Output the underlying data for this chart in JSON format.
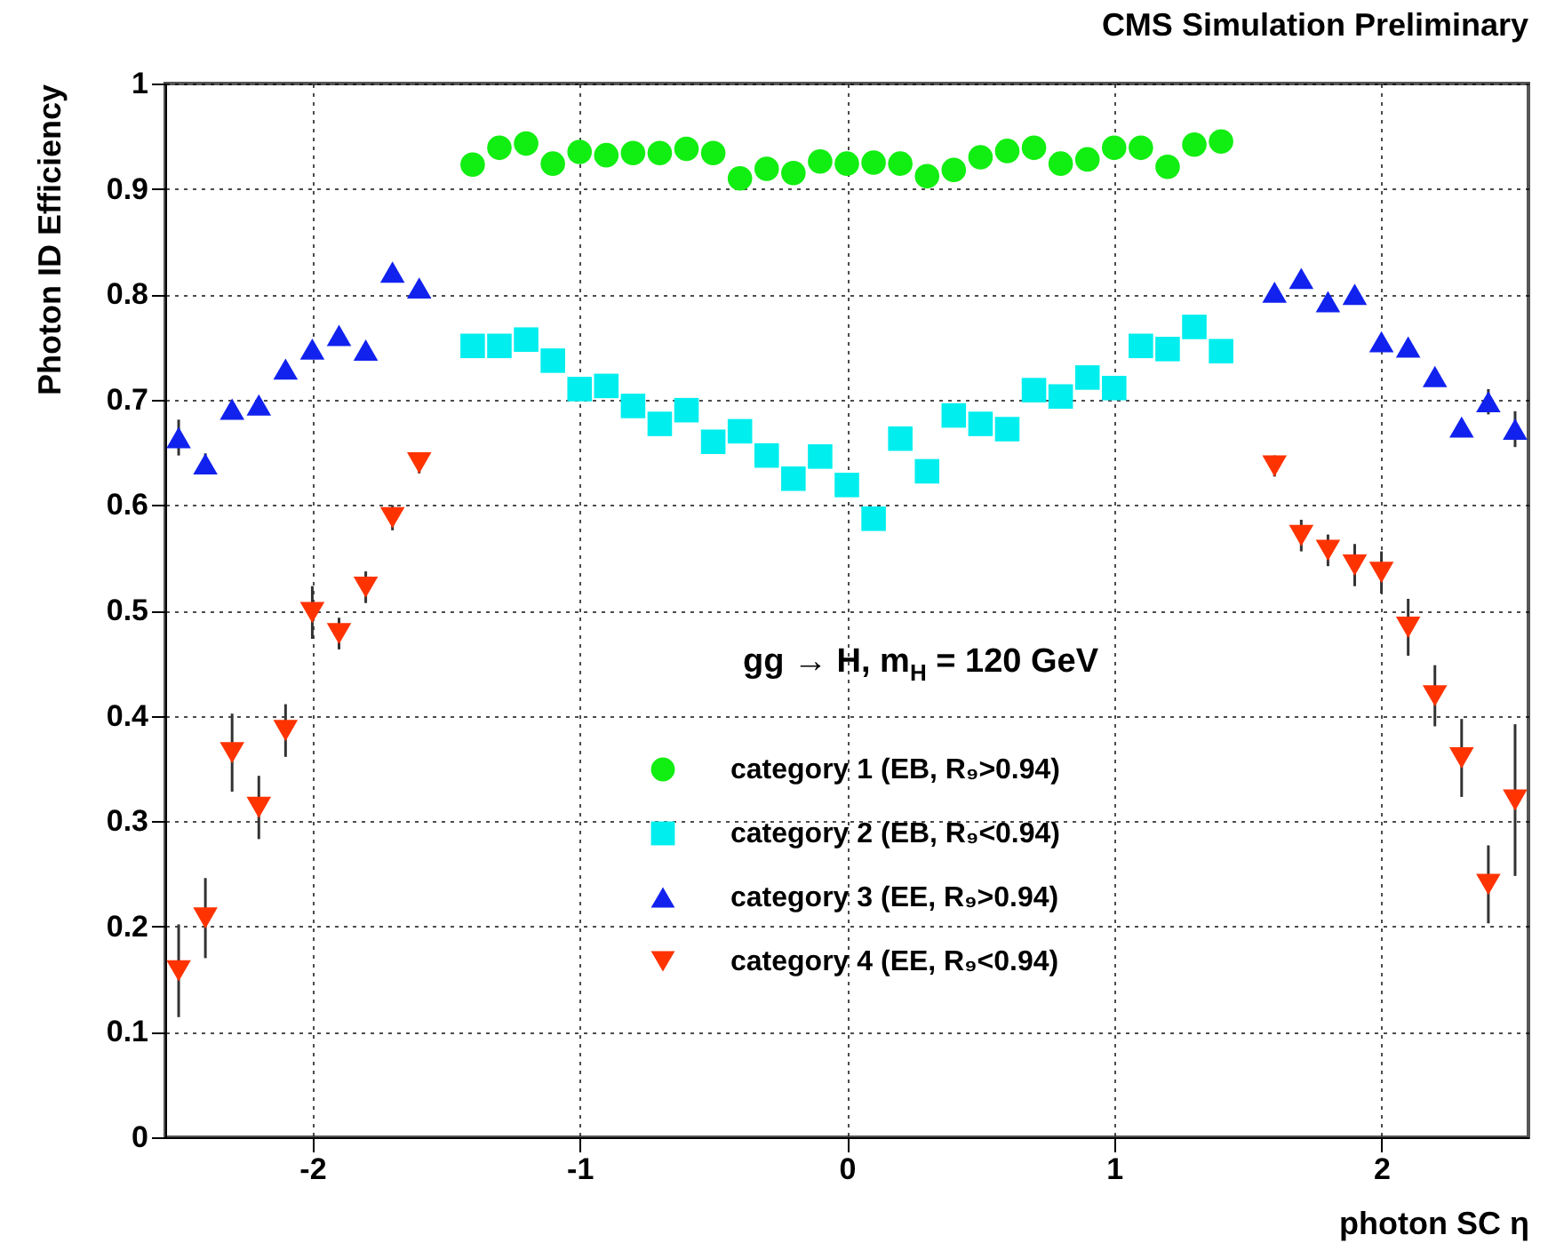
{
  "chart_data": {
    "type": "scatter",
    "title": "CMS Simulation Preliminary",
    "xlabel": "photon SC η",
    "ylabel": "Photon ID Efficiency",
    "annotations": [
      "gg → H, m$_{H}$ = 120 GeV"
    ],
    "xlim": [
      -2.55,
      2.55
    ],
    "xticks": [
      -2,
      -1,
      0,
      1,
      2
    ],
    "ylim": [
      0,
      1
    ],
    "yticks": [
      0,
      0.1,
      0.2,
      0.3,
      0.4,
      0.5,
      0.6,
      0.7,
      0.8,
      0.9,
      1
    ],
    "grid": true,
    "legend": "bottom",
    "series": [
      {
        "name": "category 1 (EB, R₉>0.94)",
        "color": "#11ee11",
        "marker": "circle",
        "x": [
          -1.4,
          -1.3,
          -1.2,
          -1.1,
          -1.0,
          -0.9,
          -0.8,
          -0.7,
          -0.6,
          -0.5,
          -0.4,
          -0.3,
          -0.2,
          -0.1,
          0,
          0.1,
          0.2,
          0.3,
          0.4,
          0.5,
          0.6,
          0.7,
          0.8,
          0.9,
          1.0,
          1.1,
          1.2,
          1.3,
          1.4
        ],
        "values": [
          0.923,
          0.939,
          0.943,
          0.924,
          0.935,
          0.932,
          0.934,
          0.934,
          0.938,
          0.934,
          0.91,
          0.919,
          0.915,
          0.926,
          0.924,
          0.925,
          0.924,
          0.912,
          0.918,
          0.93,
          0.936,
          0.939,
          0.924,
          0.928,
          0.939,
          0.939,
          0.921,
          0.942,
          0.945
        ]
      },
      {
        "name": "category 2 (EB, R₉<0.94)",
        "color": "#00eeee",
        "marker": "square",
        "x": [
          -1.4,
          -1.3,
          -1.2,
          -1.1,
          -1.0,
          -0.9,
          -0.8,
          -0.7,
          -0.6,
          -0.5,
          -0.4,
          -0.3,
          -0.2,
          -0.1,
          0,
          0.1,
          0.2,
          0.3,
          0.4,
          0.5,
          0.6,
          0.7,
          0.8,
          0.9,
          1.0,
          1.1,
          1.2,
          1.3,
          1.4
        ],
        "values": [
          0.751,
          0.751,
          0.757,
          0.737,
          0.71,
          0.713,
          0.694,
          0.677,
          0.69,
          0.66,
          0.67,
          0.647,
          0.625,
          0.646,
          0.619,
          0.587,
          0.663,
          0.632,
          0.685,
          0.677,
          0.672,
          0.709,
          0.703,
          0.721,
          0.711,
          0.751,
          0.748,
          0.769,
          0.746
        ]
      },
      {
        "name": "category 3 (EE, R₉>0.94)",
        "color": "#1122ee",
        "marker": "triangle",
        "x": [
          -2.5,
          -2.4,
          -2.3,
          -2.2,
          -2.1,
          -2.0,
          -1.9,
          -1.8,
          -1.7,
          -1.6,
          1.6,
          1.7,
          1.8,
          1.9,
          2.0,
          2.1,
          2.2,
          2.3,
          2.4,
          2.5
        ],
        "values": [
          0.664,
          0.639,
          0.691,
          0.695,
          0.729,
          0.748,
          0.761,
          0.747,
          0.821,
          0.806,
          0.802,
          0.815,
          0.793,
          0.8,
          0.755,
          0.75,
          0.722,
          0.674,
          0.698,
          0.672
        ],
        "errors": [
          0.017,
          0.01,
          null,
          null,
          null,
          null,
          null,
          null,
          null,
          null,
          null,
          null,
          null,
          null,
          null,
          null,
          null,
          null,
          0.012,
          0.017
        ]
      },
      {
        "name": "category 4 (EE, R₉<0.94)",
        "color": "#ff3300",
        "marker": "triangle-down",
        "x": [
          -2.5,
          -2.4,
          -2.3,
          -2.2,
          -2.1,
          -2.0,
          -1.9,
          -1.8,
          -1.7,
          -1.6,
          1.6,
          1.7,
          1.8,
          1.9,
          2.0,
          2.1,
          2.2,
          2.3,
          2.4,
          2.5
        ],
        "values": [
          0.158,
          0.208,
          0.365,
          0.313,
          0.386,
          0.498,
          0.478,
          0.522,
          0.588,
          0.64,
          0.637,
          0.571,
          0.557,
          0.543,
          0.536,
          0.484,
          0.419,
          0.36,
          0.24,
          0.32
        ],
        "errors": [
          0.044,
          0.038,
          0.037,
          0.03,
          0.025,
          0.025,
          0.015,
          0.015,
          0.012,
          0.01,
          0.01,
          0.015,
          0.015,
          0.02,
          0.02,
          0.027,
          0.029,
          0.037,
          0.037,
          0.072
        ]
      }
    ]
  }
}
